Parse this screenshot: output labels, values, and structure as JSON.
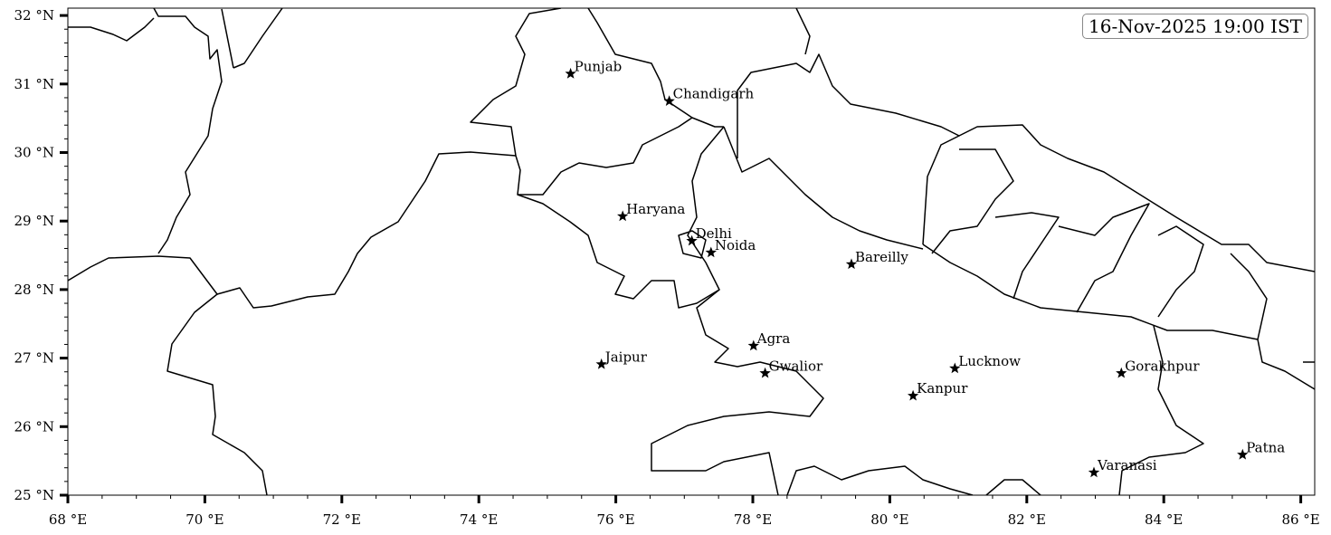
{
  "map": {
    "title": "16-Nov-2025 19:00 IST",
    "lon_range": [
      68,
      86.2
    ],
    "lat_range": [
      25,
      32.1
    ],
    "x_ticks": [
      {
        "value": 68,
        "label": "68 °E"
      },
      {
        "value": 70,
        "label": "70 °E"
      },
      {
        "value": 72,
        "label": "72 °E"
      },
      {
        "value": 74,
        "label": "74 °E"
      },
      {
        "value": 76,
        "label": "76 °E"
      },
      {
        "value": 78,
        "label": "78 °E"
      },
      {
        "value": 80,
        "label": "80 °E"
      },
      {
        "value": 82,
        "label": "82 °E"
      },
      {
        "value": 84,
        "label": "84 °E"
      },
      {
        "value": 86,
        "label": "86 °E"
      }
    ],
    "y_ticks": [
      {
        "value": 25,
        "label": "25 °N"
      },
      {
        "value": 26,
        "label": "26 °N"
      },
      {
        "value": 27,
        "label": "27 °N"
      },
      {
        "value": 28,
        "label": "28 °N"
      },
      {
        "value": 29,
        "label": "29 °N"
      },
      {
        "value": 30,
        "label": "30 °N"
      },
      {
        "value": 31,
        "label": "31 °N"
      },
      {
        "value": 32,
        "label": "32 °N"
      }
    ],
    "marker": "star",
    "marker_color": "#000000",
    "boundary_color": "#000000",
    "cities": [
      {
        "name": "Punjab",
        "lon": 75.34,
        "lat": 31.15
      },
      {
        "name": "Chandigarh",
        "lon": 76.78,
        "lat": 30.75
      },
      {
        "name": "Haryana",
        "lon": 76.1,
        "lat": 29.07
      },
      {
        "name": "Delhi",
        "lon": 77.11,
        "lat": 28.71
      },
      {
        "name": "Noida",
        "lon": 77.39,
        "lat": 28.54
      },
      {
        "name": "Bareilly",
        "lon": 79.44,
        "lat": 28.37
      },
      {
        "name": "Agra",
        "lon": 78.01,
        "lat": 27.18
      },
      {
        "name": "Jaipur",
        "lon": 75.79,
        "lat": 26.91
      },
      {
        "name": "Gwalior",
        "lon": 78.18,
        "lat": 26.78
      },
      {
        "name": "Lucknow",
        "lon": 80.95,
        "lat": 26.85
      },
      {
        "name": "Kanpur",
        "lon": 80.34,
        "lat": 26.45
      },
      {
        "name": "Gorakhpur",
        "lon": 83.38,
        "lat": 26.78
      },
      {
        "name": "Patna",
        "lon": 85.15,
        "lat": 25.59
      },
      {
        "name": "Varanasi",
        "lon": 82.98,
        "lat": 25.33
      }
    ]
  }
}
